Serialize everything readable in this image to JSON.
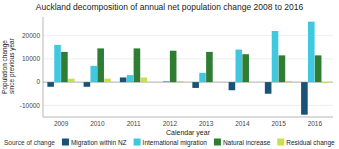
{
  "chart_data": {
    "type": "bar",
    "title": "Auckland decomposition of annual net population change 2008 to 2016",
    "xlabel": "Calendar year",
    "ylabel": "Population change since previous year",
    "categories": [
      "2009",
      "2010",
      "2011",
      "2012",
      "2013",
      "2014",
      "2015",
      "2016"
    ],
    "series": [
      {
        "name": "Migration within NZ",
        "color": "#1a5276",
        "values": [
          -2000,
          -2000,
          2000,
          0,
          -2500,
          -3500,
          -5000,
          -14000
        ]
      },
      {
        "name": "International migration",
        "color": "#40c8e0",
        "values": [
          16000,
          7000,
          3000,
          500,
          4000,
          14000,
          22000,
          26000
        ]
      },
      {
        "name": "Natural increase",
        "color": "#2e7d32",
        "values": [
          13000,
          14500,
          14500,
          13500,
          13000,
          12000,
          11500,
          11500
        ]
      },
      {
        "name": "Residual change",
        "color": "#c8e050",
        "values": [
          1500,
          1500,
          2000,
          500,
          0,
          0,
          500,
          -500
        ]
      }
    ],
    "ylim": [
      -15000,
      28000
    ],
    "yticks": [
      -10000,
      0,
      10000,
      20000
    ],
    "grid": true,
    "legend": "bottom",
    "legend_title": "Source of change"
  }
}
